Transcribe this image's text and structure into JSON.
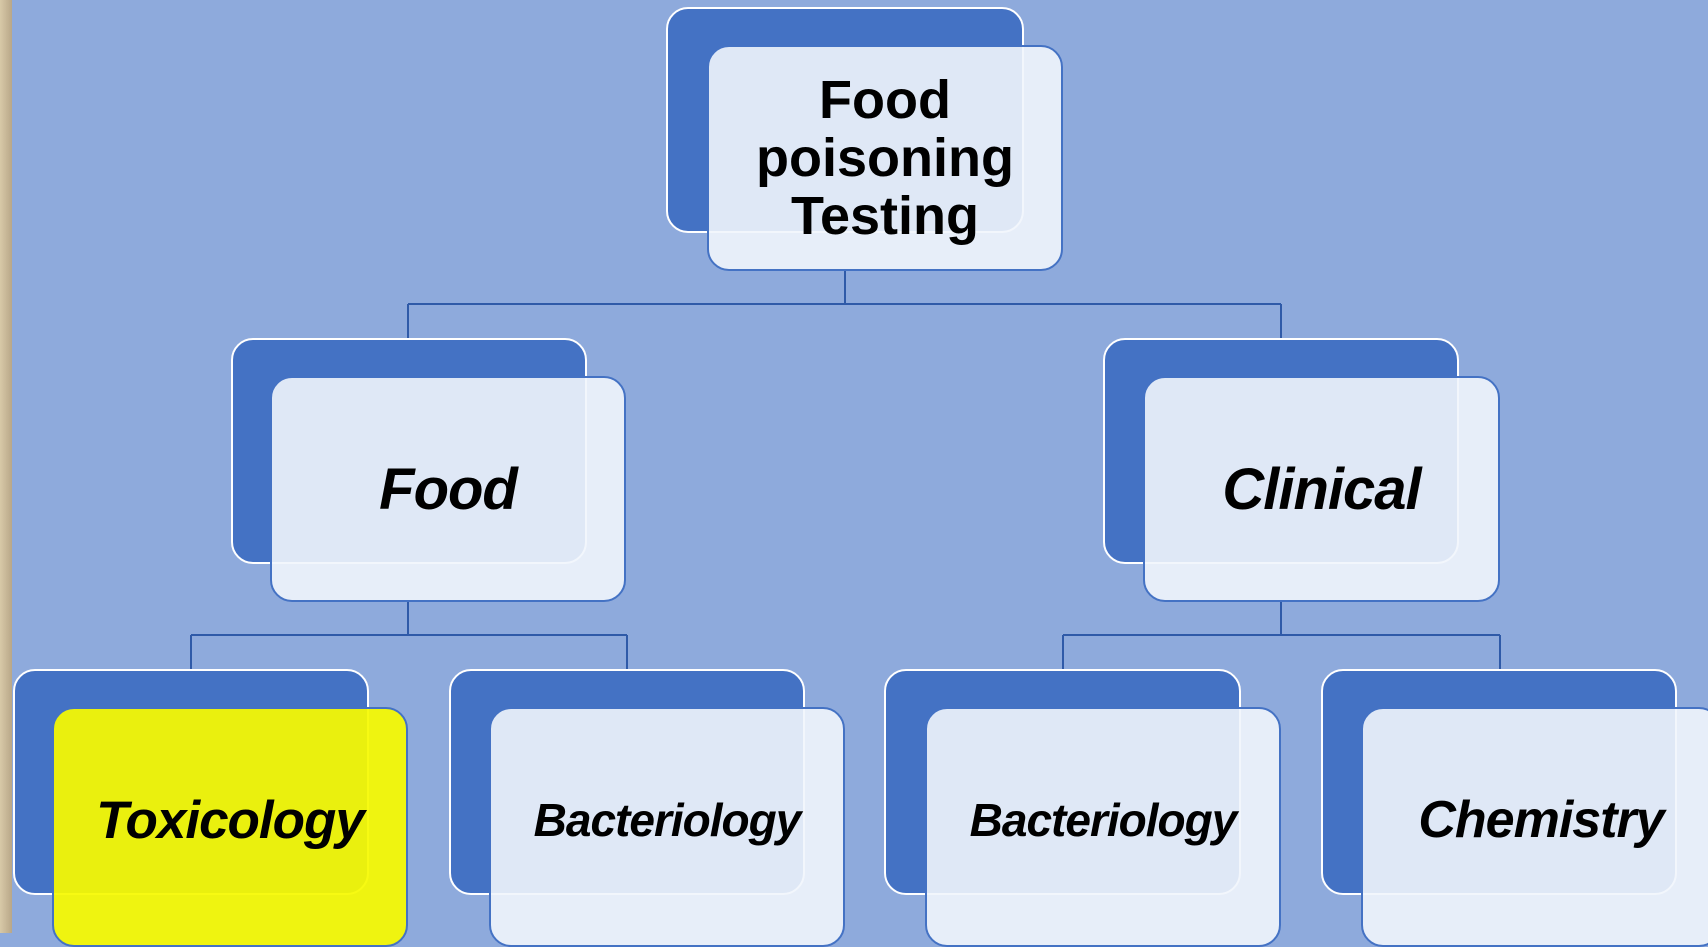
{
  "nodes": [
    {
      "label": "Food poisoning Testing"
    },
    {
      "label": "Food"
    },
    {
      "label": "Clinical"
    },
    {
      "label": "Toxicology"
    },
    {
      "label": "Bacteriology"
    },
    {
      "label": "Bacteriology"
    },
    {
      "label": "Chemistry"
    }
  ]
}
